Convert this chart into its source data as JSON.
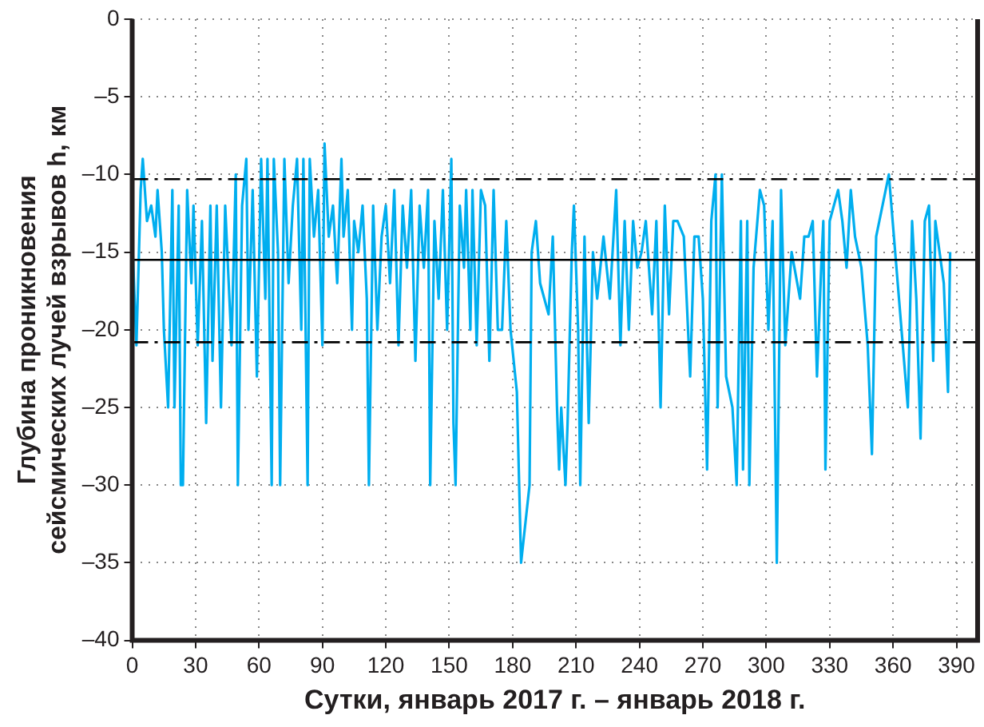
{
  "chart_data": {
    "type": "line",
    "xlabel": "Сутки, январь 2017 г. – январь 2018 г.",
    "ylabel": "Глубина проникновения сейсмических лучей взрывов h, км",
    "xlim": [
      0,
      400
    ],
    "xticks": [
      0,
      30,
      60,
      90,
      120,
      150,
      180,
      210,
      240,
      270,
      300,
      330,
      360,
      390
    ],
    "ylim": [
      -40,
      0
    ],
    "yticks": [
      0,
      {
        "value": -5,
        "label": "–5"
      },
      {
        "value": -10,
        "label": "–10"
      },
      {
        "value": -15,
        "label": "–15"
      },
      {
        "value": -20,
        "label": "–20"
      },
      {
        "value": -25,
        "label": "–25"
      },
      {
        "value": -30,
        "label": "–30"
      },
      {
        "value": -35,
        "label": "–35"
      },
      {
        "value": -40,
        "label": "–40"
      }
    ],
    "grid": true,
    "marker": "none",
    "line_style": "solid",
    "ref_lines": [
      {
        "axis": "y",
        "value": -10.3,
        "color": "#000000",
        "line_style": "dashed"
      },
      {
        "axis": "y",
        "value": -15.5,
        "color": "#000000",
        "line_style": "solid"
      },
      {
        "axis": "y",
        "value": -20.8,
        "color": "#000000",
        "line_style": "dashed"
      }
    ],
    "series": [
      {
        "color": "#00aeef",
        "x": [
          0,
          2,
          4,
          5,
          7,
          9,
          11,
          12,
          14,
          15,
          17,
          19,
          20,
          22,
          23,
          24,
          26,
          28,
          29,
          31,
          33,
          35,
          37,
          38,
          40,
          42,
          44,
          46,
          47,
          49,
          50,
          52,
          54,
          55,
          57,
          59,
          61,
          63,
          64,
          66,
          67,
          69,
          70,
          72,
          74,
          76,
          78,
          80,
          81,
          83,
          84,
          86,
          88,
          90,
          91,
          93,
          95,
          97,
          99,
          100,
          102,
          104,
          105,
          107,
          109,
          111,
          112,
          114,
          116,
          118,
          120,
          122,
          124,
          126,
          128,
          130,
          132,
          134,
          136,
          138,
          140,
          141,
          143,
          145,
          147,
          149,
          151,
          152,
          153,
          155,
          157,
          158,
          160,
          161,
          163,
          165,
          167,
          169,
          171,
          173,
          175,
          177,
          179,
          182,
          184,
          188,
          189,
          191,
          193,
          197,
          199,
          201,
          202,
          203,
          205,
          206,
          208,
          209,
          211,
          212,
          214,
          216,
          218,
          220,
          223,
          226,
          229,
          231,
          233,
          235,
          237,
          239,
          241,
          243,
          246,
          248,
          250,
          252,
          254,
          256,
          258,
          261,
          264,
          266,
          268,
          270,
          272,
          274,
          276,
          277,
          279,
          281,
          284,
          286,
          288,
          289,
          291,
          292,
          294,
          297,
          299,
          301,
          303,
          305,
          307,
          309,
          312,
          316,
          318,
          320,
          322,
          324,
          326,
          327,
          328,
          330,
          332,
          334,
          336,
          338,
          340,
          342,
          345,
          348,
          350,
          352,
          355,
          358,
          361,
          364,
          367,
          369,
          371,
          373,
          375,
          377,
          379,
          380,
          382,
          384,
          386,
          387
        ],
        "values": [
          -14,
          -21,
          -11,
          -9,
          -13,
          -12,
          -14,
          -11,
          -15,
          -20,
          -25,
          -11,
          -25,
          -12,
          -30,
          -30,
          -11,
          -17,
          -12,
          -21,
          -13,
          -26,
          -12,
          -22,
          -12,
          -25,
          -12,
          -18,
          -21,
          -10,
          -30,
          -12,
          -9,
          -20,
          -11,
          -23,
          -9,
          -18,
          -9,
          -30,
          -9,
          -15,
          -30,
          -9,
          -17,
          -12,
          -9,
          -20,
          -9,
          -30,
          -9,
          -14,
          -11,
          -21,
          -8,
          -14,
          -12,
          -17,
          -9,
          -14,
          -11,
          -20,
          -13,
          -15,
          -12,
          -18,
          -30,
          -12,
          -20,
          -14,
          -12,
          -17,
          -11,
          -21,
          -12,
          -16,
          -11,
          -22,
          -12,
          -16,
          -11,
          -30,
          -13,
          -18,
          -11,
          -20,
          -9,
          -26,
          -30,
          -12,
          -16,
          -11,
          -20,
          -11,
          -21,
          -11,
          -12,
          -22,
          -11,
          -20,
          -20,
          -13,
          -20,
          -24,
          -35,
          -30,
          -15,
          -13,
          -17,
          -19,
          -14,
          -25,
          -29,
          -25,
          -30,
          -26,
          -15,
          -12,
          -20,
          -30,
          -14,
          -26,
          -15,
          -18,
          -14,
          -18,
          -11,
          -21,
          -13,
          -20,
          -13,
          -16,
          -15,
          -13,
          -19,
          -13,
          -25,
          -12,
          -19,
          -13,
          -13,
          -14,
          -23,
          -14,
          -14,
          -18,
          -29,
          -13,
          -10,
          -25,
          -10,
          -23,
          -25,
          -30,
          -13,
          -29,
          -13,
          -30,
          -16,
          -11,
          -12,
          -20,
          -13,
          -35,
          -11,
          -21,
          -15,
          -18,
          -14,
          -14,
          -13,
          -23,
          -16,
          -13,
          -29,
          -13,
          -12,
          -11,
          -13,
          -16,
          -11,
          -14,
          -16,
          -21,
          -28,
          -14,
          -12,
          -10,
          -15,
          -20,
          -25,
          -13,
          -18,
          -27,
          -13,
          -12,
          -22,
          -13,
          -15,
          -17,
          -24,
          -15
        ]
      }
    ]
  }
}
